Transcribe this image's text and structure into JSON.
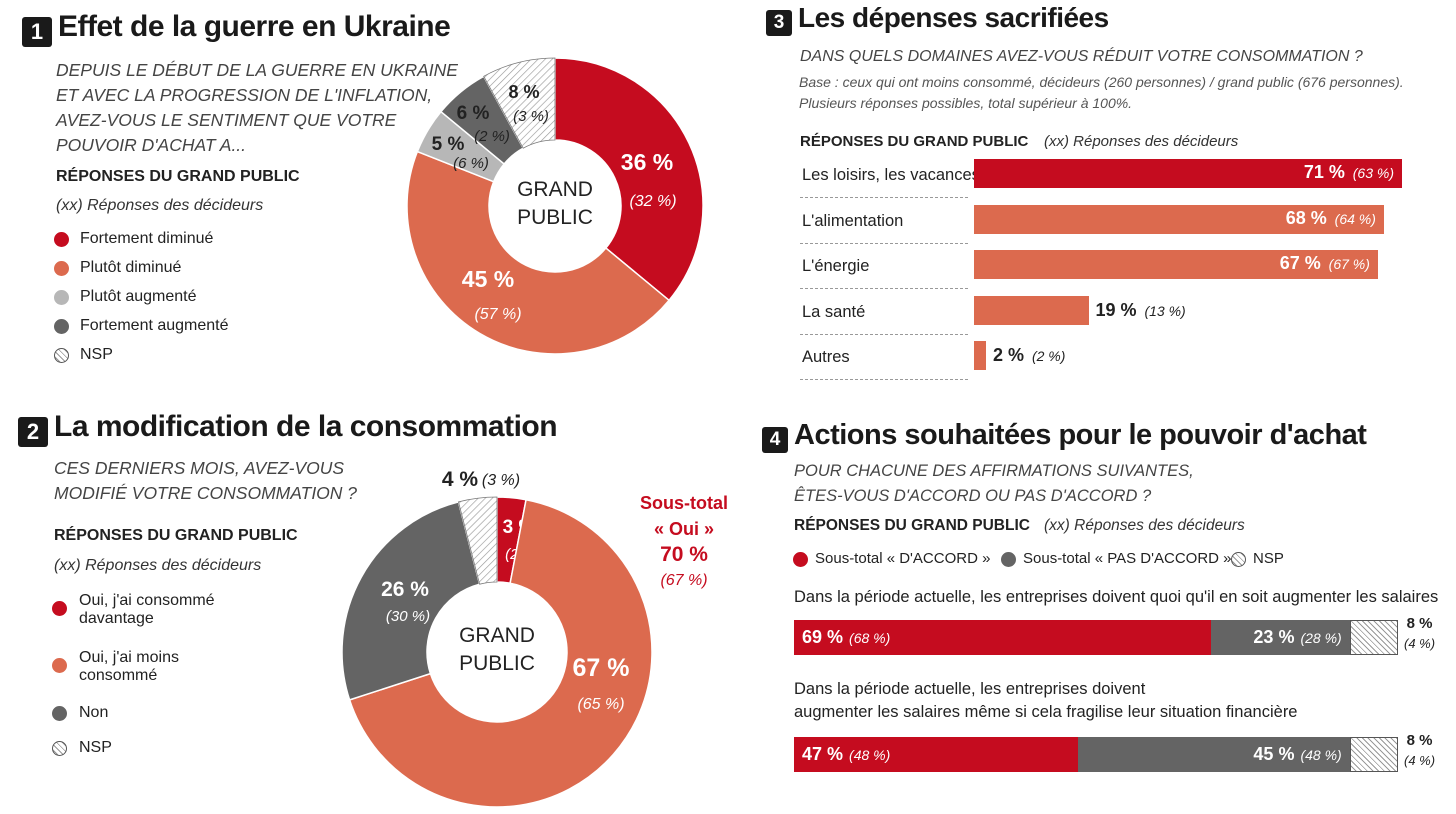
{
  "colors": {
    "dark_red": "#c50c1f",
    "orange": "#dc6a4e",
    "light_gray": "#b7b7b7",
    "dark_gray": "#646464",
    "text": "#222222"
  },
  "section1": {
    "number": "1",
    "title": "Effet de la guerre en Ukraine",
    "question": [
      "DEPUIS LE DÉBUT DE LA GUERRE EN UKRAINE",
      "ET AVEC LA PROGRESSION DE L'INFLATION,",
      "AVEZ-VOUS LE SENTIMENT QUE VOTRE",
      "POUVOIR D'ACHAT A..."
    ],
    "responses_label": "RÉPONSES DU GRAND PUBLIC",
    "decideurs_label": "(xx) Réponses des décideurs",
    "legend": [
      "Fortement diminué",
      "Plutôt diminué",
      "Plutôt augmenté",
      "Fortement augmenté",
      "NSP"
    ],
    "center": [
      "GRAND",
      "PUBLIC"
    ]
  },
  "section2": {
    "number": "2",
    "title": "La modification de la consommation",
    "question": [
      "CES DERNIERS MOIS, AVEZ-VOUS",
      "MODIFIÉ VOTRE CONSOMMATION ?"
    ],
    "responses_label": "RÉPONSES DU GRAND PUBLIC",
    "decideurs_label": "(xx) Réponses des décideurs",
    "legend": [
      "Oui, j'ai consommé davantage",
      "Oui, j'ai moins consommé",
      "Non",
      "NSP"
    ],
    "center": [
      "GRAND",
      "PUBLIC"
    ],
    "subtotal": {
      "label": "Sous-total",
      "oui": "« Oui »",
      "value": "70 %",
      "dec": "(67 %)"
    }
  },
  "section3": {
    "number": "3",
    "title": "Les dépenses sacrifiées",
    "question": "DANS QUELS DOMAINES AVEZ-VOUS RÉDUIT VOTRE CONSOMMATION ?",
    "base": [
      "Base : ceux qui ont moins consommé, décideurs (260 personnes) / grand public (676 personnes).",
      "Plusieurs réponses possibles, total supérieur à 100%."
    ],
    "responses_label": "RÉPONSES DU GRAND PUBLIC",
    "decideurs_label": "(xx) Réponses des décideurs"
  },
  "section4": {
    "number": "4",
    "title": "Actions souhaitées pour le pouvoir d'achat",
    "question": [
      "POUR CHACUNE DES AFFIRMATIONS SUIVANTES,",
      "ÊTES-VOUS D'ACCORD OU PAS D'ACCORD ?"
    ],
    "responses_label": "RÉPONSES DU GRAND PUBLIC",
    "decideurs_label": "(xx) Réponses des décideurs",
    "legend": [
      "Sous-total « D'ACCORD »",
      "Sous-total « PAS D'ACCORD »",
      "NSP"
    ]
  },
  "chart_data": [
    {
      "type": "pie",
      "categories": [
        "Fortement diminué",
        "Plutôt diminué",
        "Plutôt augmenté",
        "Fortement augmenté",
        "NSP"
      ],
      "series": [
        {
          "name": "GRAND PUBLIC",
          "values": [
            36,
            45,
            5,
            6,
            8
          ]
        },
        {
          "name": "décideurs",
          "values": [
            32,
            57,
            6,
            2,
            3
          ]
        }
      ],
      "labels": [
        "36 %",
        "45 %",
        "5 %",
        "6 %",
        "8 %"
      ],
      "dec_labels": [
        "(32 %)",
        "(57 %)",
        "(6 %)",
        "(2 %)",
        "(3 %)"
      ]
    },
    {
      "type": "pie",
      "categories": [
        "Oui, j'ai consommé davantage",
        "Oui, j'ai moins consommé",
        "Non",
        "NSP"
      ],
      "series": [
        {
          "name": "GRAND PUBLIC",
          "values": [
            3,
            67,
            26,
            4
          ]
        },
        {
          "name": "décideurs",
          "values": [
            2,
            65,
            30,
            3
          ]
        }
      ],
      "labels": [
        "3 %",
        "67 %",
        "26 %",
        "4 %"
      ],
      "dec_labels": [
        "(2 %)",
        "(65 %)",
        "(30 %)",
        "(3 %)"
      ]
    },
    {
      "type": "bar",
      "categories": [
        "Les loisirs, les vacances",
        "L'alimentation",
        "L'énergie",
        "La santé",
        "Autres"
      ],
      "series": [
        {
          "name": "GRAND PUBLIC",
          "values": [
            71,
            68,
            67,
            19,
            2
          ]
        },
        {
          "name": "décideurs",
          "values": [
            63,
            64,
            67,
            13,
            2
          ]
        }
      ],
      "labels": [
        "71 %",
        "68 %",
        "67 %",
        "19 %",
        "2 %"
      ],
      "dec_labels": [
        "(63 %)",
        "(64 %)",
        "(67 %)",
        "(13 %)",
        "(2 %)"
      ],
      "xlim": [
        0,
        75
      ]
    },
    {
      "type": "bar",
      "stacked": true,
      "categories": [
        "Dans la période actuelle, les entreprises doivent quoi qu'il en soit augmenter les salaires",
        "Dans la période actuelle, les entreprises doivent augmenter les salaires même si cela fragilise leur situation financière"
      ],
      "category_lines": [
        [
          "Dans la période actuelle, les entreprises doivent quoi qu'il en soit augmenter les salaires"
        ],
        [
          "Dans la période actuelle, les entreprises doivent",
          "augmenter les salaires même si cela fragilise leur situation financière"
        ]
      ],
      "series": [
        {
          "name": "Sous-total « D'ACCORD »",
          "values": [
            69,
            47
          ],
          "dec_values": [
            68,
            48
          ],
          "labels": [
            "69 %",
            "47 %"
          ],
          "dec_labels": [
            "(68 %)",
            "(48 %)"
          ]
        },
        {
          "name": "Sous-total « PAS D'ACCORD »",
          "values": [
            23,
            45
          ],
          "dec_values": [
            28,
            48
          ],
          "labels": [
            "23 %",
            "45 %"
          ],
          "dec_labels": [
            "(28 %)",
            "(48 %)"
          ]
        },
        {
          "name": "NSP",
          "values": [
            8,
            8
          ],
          "dec_values": [
            4,
            4
          ],
          "labels": [
            "8 %",
            "8 %"
          ],
          "dec_labels": [
            "(4 %)",
            "(4 %)"
          ]
        }
      ]
    }
  ]
}
